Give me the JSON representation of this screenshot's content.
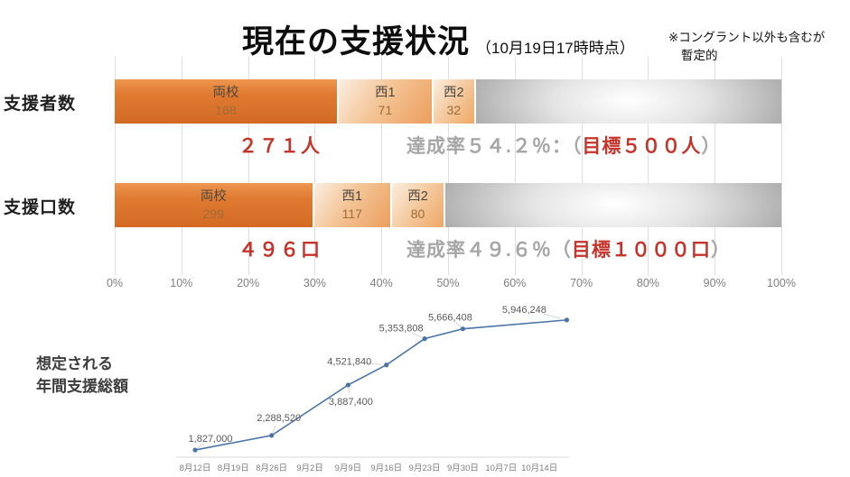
{
  "title": {
    "main": "現在の支援状況",
    "sub": "（10月19日17時時点）"
  },
  "note": {
    "line1": "※コングラント以外も含むが",
    "line2": "暫定的"
  },
  "colors": {
    "accent_red": "#c5342b",
    "gray_text": "#a6a6a6",
    "bar_orange_dark": "#e07a31",
    "bar_orange_light": "#f0a766",
    "bar_remainder_gray": "#a9a9a9",
    "line_blue": "#4a74a5",
    "axis_gray": "#d9d9d9"
  },
  "chart_data": [
    {
      "type": "bar",
      "subtype": "horizontal-stacked-progress",
      "axis_ticks": [
        "0%",
        "10%",
        "20%",
        "30%",
        "40%",
        "50%",
        "60%",
        "70%",
        "80%",
        "90%",
        "100%"
      ],
      "axis_range": [
        0,
        100
      ],
      "rows": [
        {
          "label": "支援者数",
          "goal": 500,
          "total": 271,
          "total_label": "２７１人",
          "achievement_pct": 54.2,
          "rate_prefix": "達成率５４.２％：（",
          "rate_target": "目標５００人",
          "rate_suffix": "）",
          "segments": [
            {
              "name": "両校",
              "value": 168
            },
            {
              "name": "西1",
              "value": 71
            },
            {
              "name": "西2",
              "value": 32
            }
          ]
        },
        {
          "label": "支援口数",
          "goal": 1000,
          "total": 496,
          "total_label": "４９６口",
          "achievement_pct": 49.6,
          "rate_prefix": "達成率４９.６％（",
          "rate_target": "目標１０００口",
          "rate_suffix": "）",
          "segments": [
            {
              "name": "両校",
              "value": 299
            },
            {
              "name": "西1",
              "value": 117
            },
            {
              "name": "西2",
              "value": 80
            }
          ]
        }
      ]
    },
    {
      "type": "line",
      "title": "想定される年間支援総額",
      "title_line1": "想定される",
      "title_line2": "年間支援総額",
      "x_tick_labels": [
        "8月12日",
        "8月19日",
        "8月26日",
        "9月2日",
        "9月9日",
        "9月16日",
        "9月23日",
        "9月30日",
        "10月7日",
        "10月14日"
      ],
      "points": [
        {
          "date": "8月12日",
          "value": 1827000,
          "label": "1,827,000"
        },
        {
          "date": "8月26日",
          "value": 2288520,
          "label": "2,288,520"
        },
        {
          "date": "9月9日",
          "value": 3887400,
          "label": "3,887,400"
        },
        {
          "date": "9月16日",
          "value": 4521840,
          "label": "4,521,840"
        },
        {
          "date": "9月23日",
          "value": 5353808,
          "label": "5,353,808"
        },
        {
          "date": "9月30日",
          "value": 5666408,
          "label": "5,666,408"
        },
        {
          "date": "10月19日",
          "value": 5946248,
          "label": "5,946,248"
        }
      ]
    }
  ]
}
